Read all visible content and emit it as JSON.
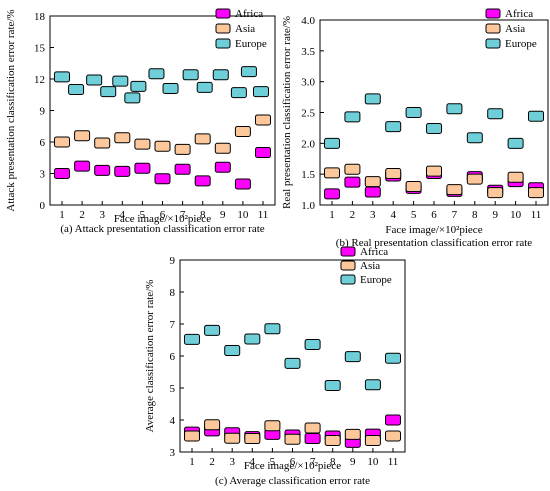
{
  "chart_data": [
    {
      "type": "scatter",
      "caption": "(a) Attack presentation classification error rate",
      "xlabel": "Face image/×10²piece",
      "ylabel": "Attack presentation classification error rate/%",
      "xticks": [
        "1",
        "2",
        "3",
        "4",
        "5",
        "6",
        "7",
        "8",
        "9",
        "10",
        "11"
      ],
      "yticks": [
        "0",
        "3",
        "6",
        "9",
        "12",
        "15",
        "18"
      ],
      "ylim": [
        0,
        18
      ],
      "legend_placement": "top-right",
      "grid": false,
      "series": [
        {
          "name": "Africa",
          "color": "#ff00ff",
          "values": [
            3.0,
            3.7,
            3.3,
            3.2,
            3.5,
            2.5,
            3.4,
            2.3,
            3.6,
            2.0,
            5.0
          ]
        },
        {
          "name": "Asia",
          "color": "#fcc89b",
          "values": [
            6.0,
            6.6,
            5.9,
            6.4,
            5.8,
            5.6,
            5.3,
            6.3,
            5.4,
            7.0,
            8.1
          ]
        },
        {
          "name": "Europe",
          "color": "#6fcfd9",
          "values": [
            12.2,
            11.0,
            11.9,
            10.8,
            11.8,
            10.2,
            11.3,
            12.5,
            11.1,
            12.4,
            11.2,
            12.4,
            10.7,
            12.7,
            10.8
          ],
          "x": [
            1,
            1.7,
            2.6,
            3.3,
            3.9,
            4.5,
            4.8,
            5.7,
            6.4,
            7.4,
            8.1,
            8.9,
            9.8,
            10.3,
            10.9
          ]
        }
      ]
    },
    {
      "type": "scatter",
      "caption": "(b) Real presentation classification error rate",
      "xlabel": "Face image/×10²piece",
      "ylabel": "Real presentation classification error rate/%",
      "xticks": [
        "1",
        "2",
        "3",
        "4",
        "5",
        "6",
        "7",
        "8",
        "9",
        "10",
        "11"
      ],
      "yticks": [
        "1.0",
        "1.5",
        "2.0",
        "2.5",
        "3.0",
        "3.5",
        "4.0"
      ],
      "ylim": [
        1.0,
        4.0
      ],
      "legend_placement": "top-right",
      "grid": false,
      "series": [
        {
          "name": "Africa",
          "color": "#ff00ff",
          "values": [
            1.18,
            1.37,
            1.21,
            1.47,
            1.27,
            1.51,
            1.22,
            1.46,
            1.24,
            1.38,
            1.28
          ]
        },
        {
          "name": "Asia",
          "color": "#fcc89b",
          "values": [
            1.52,
            1.58,
            1.38,
            1.51,
            1.3,
            1.55,
            1.25,
            1.42,
            1.2,
            1.45,
            1.2
          ]
        },
        {
          "name": "Europe",
          "color": "#6fcfd9",
          "values": [
            2.0,
            2.43,
            2.72,
            2.27,
            2.5,
            2.24,
            2.56,
            2.09,
            2.48,
            2.0,
            2.44
          ]
        }
      ]
    },
    {
      "type": "scatter",
      "caption": "(c) Average classification error rate",
      "xlabel": "Face image/×10²piece",
      "ylabel": "Average classification error rate/%",
      "xticks": [
        "1",
        "2",
        "3",
        "4",
        "5",
        "6",
        "7",
        "8",
        "9",
        "10",
        "11"
      ],
      "yticks": [
        "3",
        "4",
        "5",
        "6",
        "7",
        "8",
        "9"
      ],
      "ylim": [
        3,
        9
      ],
      "legend_placement": "top-right",
      "grid": false,
      "series": [
        {
          "name": "Africa",
          "color": "#ff00ff",
          "values": [
            3.62,
            3.66,
            3.6,
            3.48,
            3.55,
            3.53,
            3.42,
            3.5,
            3.3,
            3.56,
            4.0
          ]
        },
        {
          "name": "Asia",
          "color": "#fcc89b",
          "values": [
            3.5,
            3.85,
            3.43,
            3.42,
            3.82,
            3.4,
            3.75,
            3.36,
            3.55,
            3.36,
            3.5
          ]
        },
        {
          "name": "Europe",
          "color": "#6fcfd9",
          "values": [
            6.52,
            6.8,
            6.17,
            6.53,
            6.85,
            5.77,
            6.36,
            5.08,
            5.98,
            5.1,
            5.93
          ]
        }
      ]
    }
  ]
}
